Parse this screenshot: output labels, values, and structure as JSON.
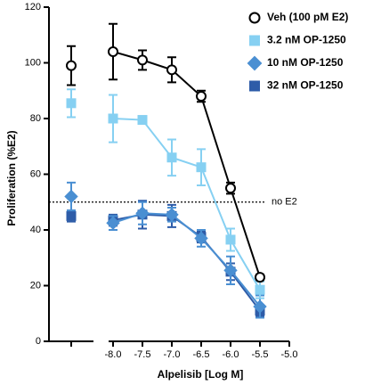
{
  "chart_data": {
    "type": "line",
    "y_label": "Proliferation (%E2)",
    "x_label": "Alpelisib [Log M]",
    "x": [
      -8,
      -7.5,
      -7,
      -6.5,
      -6,
      -5.5
    ],
    "xlim": [
      -8,
      -5
    ],
    "xticks": [
      {
        "value": -8,
        "label": "-8.0"
      },
      -7.5,
      {
        "value": -7,
        "label": "-7.0"
      },
      -6.5,
      {
        "value": -6,
        "label": "-6.0"
      },
      -5.5,
      {
        "value": -5,
        "label": "-5.0"
      }
    ],
    "ylim": [
      0,
      120
    ],
    "yticks": [
      0,
      20,
      40,
      60,
      80,
      100,
      120
    ],
    "reference_line": {
      "value": 50,
      "label": "no E2"
    },
    "legend": "upper right",
    "series": [
      {
        "name": "Veh (100 pM E2)",
        "color": "#000000",
        "marker": "circle",
        "control_value": 99,
        "control_error": 7,
        "values": [
          104,
          101,
          97.5,
          88,
          55,
          23
        ],
        "errors": [
          10,
          3.5,
          4.5,
          2,
          2,
          1
        ]
      },
      {
        "name": "3.2 nM OP-1250",
        "color": "#86d0f2",
        "marker": "square",
        "control_value": 85.5,
        "control_error": 5,
        "values": [
          80,
          79.5,
          66,
          62.5,
          36.5,
          18.5
        ],
        "errors": [
          8.5,
          1,
          6.5,
          6.5,
          4,
          3
        ]
      },
      {
        "name": "10 nM OP-1250",
        "color": "#4a8fd2",
        "marker": "diamond",
        "control_value": 52,
        "control_error": 5,
        "values": [
          42.5,
          46,
          45.5,
          37,
          25.5,
          12.5
        ],
        "errors": [
          2.5,
          4,
          2.5,
          3,
          5,
          4
        ]
      },
      {
        "name": "32 nM OP-1250",
        "color": "#2e5ca8",
        "marker": "square",
        "control_value": 45,
        "control_error": 2,
        "values": [
          43.5,
          45.5,
          45,
          37.5,
          25,
          11
        ],
        "errors": [
          2,
          5,
          4,
          2,
          3,
          2
        ]
      }
    ]
  }
}
